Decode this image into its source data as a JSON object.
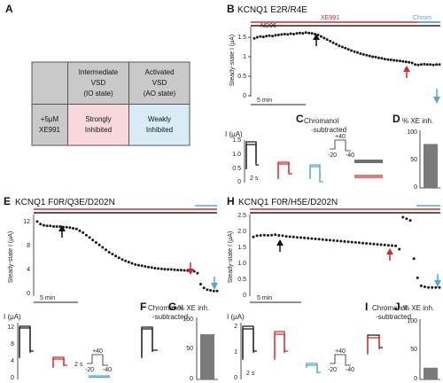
{
  "colors": {
    "black": "#1a1a1a",
    "red": "#d9262c",
    "blue": "#4ea9d6",
    "gray": "#7a7a7a",
    "pink": "#f8d8dc",
    "lightblue": "#d8ecf6",
    "tablegray": "#c9c9c9"
  },
  "panels": {
    "A": "A",
    "B": "B",
    "C": "C",
    "D": "D",
    "E": "E",
    "F": "F",
    "G": "G",
    "H": "H",
    "I_top": "I",
    "I_bottom": "I",
    "J": "J"
  },
  "table": {
    "col1": [
      "Intermediate",
      "VSD",
      "(IO state)"
    ],
    "col2": [
      "Activated",
      "VSD",
      "(AO state)"
    ],
    "row_head": [
      "+5μM",
      "XE991"
    ],
    "cell1": [
      "Strongly",
      "Inhibited"
    ],
    "cell2": [
      "Weakly",
      "Inhibited"
    ]
  },
  "titles": {
    "B": "KCNQ1 E2R/R4E",
    "E": "KCNQ1 F0R/Q3E/D202N",
    "H": "KCNQ1 F0R/H5E/D202N"
  },
  "labels": {
    "nd96": "ND96",
    "xe991": "XE991",
    "chrom": "Chrom",
    "steady_state": "Steady-state I (μA)",
    "five_min": "5 min",
    "current": "I (μA)",
    "two_s": "2 s",
    "chromanol": "Chromanol",
    "subtracted": "-subtracted",
    "xe_inh": "% XE inh.",
    "plus40": "+40",
    "minus20": "-20",
    "minus40": "-40"
  },
  "ticks": {
    "B": [
      "1.5",
      "1",
      "0.5",
      "0"
    ],
    "C": [
      "1.5",
      "1.0",
      "0.5",
      "0"
    ],
    "D": [
      "100",
      "50",
      "0"
    ],
    "E": [
      "12",
      "8",
      "4",
      "0"
    ],
    "F": [
      "12",
      "8",
      "4",
      "0"
    ],
    "G": [
      "100",
      "50",
      "0"
    ],
    "H": [
      "2.5",
      "2.0",
      "1.5",
      "1.0",
      "0.5",
      "0"
    ],
    "I": [
      "2",
      "1",
      "0"
    ],
    "J": [
      "100",
      "50",
      "0"
    ]
  },
  "chart_data": [
    {
      "panel": "D",
      "type": "bar",
      "categories": [
        ""
      ],
      "values": [
        80
      ],
      "ylim": [
        0,
        100
      ],
      "ylabel": "% XE inh."
    },
    {
      "panel": "G",
      "type": "bar",
      "categories": [
        ""
      ],
      "values": [
        75
      ],
      "ylim": [
        0,
        100
      ],
      "ylabel": "% XE inh."
    },
    {
      "panel": "J",
      "type": "bar",
      "categories": [
        ""
      ],
      "values": [
        20
      ],
      "ylim": [
        0,
        100
      ],
      "ylabel": "% XE inh."
    },
    {
      "panel": "B",
      "type": "scatter",
      "ylabel": "Steady-state I (μA)",
      "ylim": [
        0,
        1.75
      ],
      "y": [
        1.47,
        1.5,
        1.52,
        1.51,
        1.53,
        1.54,
        1.53,
        1.55,
        1.56,
        1.57,
        1.58,
        1.57,
        1.59,
        1.58,
        1.6,
        1.61,
        1.6,
        1.62,
        1.61,
        1.6,
        1.58,
        1.56,
        1.52,
        1.48,
        1.44,
        1.4,
        1.36,
        1.32,
        1.28,
        1.25,
        1.22,
        1.19,
        1.16,
        1.13,
        1.11,
        1.08,
        1.06,
        1.04,
        1.02,
        1.0,
        0.99,
        0.97,
        0.96,
        0.94,
        0.93,
        0.92,
        0.91,
        0.9,
        0.89,
        0.88,
        0.87,
        0.86,
        0.84,
        0.8,
        0.79,
        0.8,
        0.81,
        0.8,
        0.8,
        0.79,
        0.8,
        0.8
      ]
    },
    {
      "panel": "E",
      "type": "scatter",
      "ylabel": "Steady-state I (μA)",
      "ylim": [
        0,
        13
      ],
      "y": [
        12.0,
        11.6,
        11.4,
        11.3,
        11.3,
        11.2,
        11.2,
        11.2,
        11.1,
        11.1,
        11.0,
        10.9,
        10.8,
        10.5,
        10.2,
        9.8,
        9.4,
        9.0,
        8.6,
        8.2,
        7.8,
        7.4,
        7.0,
        6.7,
        6.4,
        6.1,
        5.8,
        5.6,
        5.4,
        5.2,
        5.0,
        4.9,
        4.8,
        4.7,
        4.6,
        4.5,
        4.4,
        4.35,
        4.3,
        4.25,
        4.2,
        4.2,
        4.15,
        4.1,
        4.1,
        4.05,
        4.0,
        4.0,
        3.9,
        3.6,
        1.8,
        1.2,
        0.9,
        0.8,
        0.7,
        0.7
      ]
    },
    {
      "panel": "H",
      "type": "scatter",
      "ylabel": "Steady-state I (μA)",
      "ylim": [
        0,
        2.5
      ],
      "y": [
        1.88,
        1.92,
        1.93,
        1.94,
        1.93,
        1.94,
        1.95,
        1.93,
        1.92,
        1.9,
        1.89,
        1.88,
        1.87,
        1.86,
        1.85,
        1.84,
        1.83,
        1.82,
        1.81,
        1.8,
        1.79,
        1.78,
        1.77,
        1.76,
        1.75,
        1.74,
        1.73,
        1.72,
        1.71,
        1.7,
        1.69,
        1.68,
        1.67,
        1.66,
        1.65,
        1.64,
        1.63,
        1.62,
        1.61,
        1.6,
        1.5,
        2.5,
        2.45,
        2.4,
        1.2,
        0.6,
        0.35,
        0.32,
        0.3,
        0.3,
        0.3,
        0.3
      ]
    }
  ]
}
